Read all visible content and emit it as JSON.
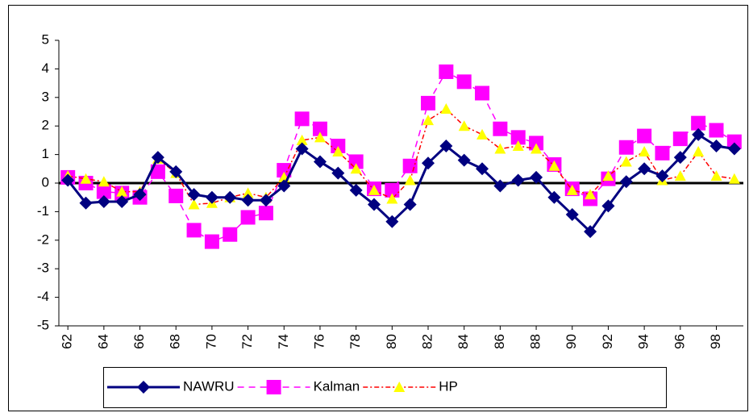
{
  "chart_data": {
    "type": "line",
    "x": [
      62,
      63,
      64,
      65,
      66,
      67,
      68,
      69,
      70,
      71,
      72,
      73,
      74,
      75,
      76,
      77,
      78,
      79,
      80,
      81,
      82,
      83,
      84,
      85,
      86,
      87,
      88,
      89,
      90,
      91,
      92,
      93,
      94,
      95,
      96,
      97,
      98,
      99
    ],
    "xlim": [
      61.5,
      99.5
    ],
    "xticks": [
      62,
      64,
      66,
      68,
      70,
      72,
      74,
      76,
      78,
      80,
      82,
      84,
      86,
      88,
      90,
      92,
      94,
      96,
      98
    ],
    "ylim": [
      -5,
      5
    ],
    "yticks": [
      -5,
      -4,
      -3,
      -2,
      -1,
      0,
      1,
      2,
      3,
      4,
      5
    ],
    "legend": "bottom",
    "series": [
      {
        "name": "NAWRU",
        "color": "#000080",
        "marker_color": "#000080",
        "marker": "diamond",
        "line_style": "solid",
        "values": [
          0.1,
          -0.7,
          -0.65,
          -0.65,
          -0.4,
          0.9,
          0.4,
          -0.4,
          -0.5,
          -0.5,
          -0.6,
          -0.6,
          -0.1,
          1.2,
          0.75,
          0.35,
          -0.25,
          -0.75,
          -1.35,
          -0.75,
          0.7,
          1.3,
          0.8,
          0.5,
          -0.1,
          0.1,
          0.2,
          -0.5,
          -1.1,
          -1.7,
          -0.8,
          0.05,
          0.5,
          0.25,
          0.9,
          1.7,
          1.3,
          1.2
        ]
      },
      {
        "name": "Kalman",
        "color": "#ff00ff",
        "marker_color": "#ff00ff",
        "marker": "square",
        "line_style": "dash",
        "values": [
          0.2,
          0,
          -0.3,
          -0.35,
          -0.5,
          0.4,
          -0.45,
          -1.65,
          -2.05,
          -1.8,
          -1.2,
          -1.05,
          0.45,
          2.25,
          1.9,
          1.3,
          0.75,
          -0.2,
          -0.25,
          0.6,
          2.8,
          3.9,
          3.55,
          3.15,
          1.9,
          1.6,
          1.4,
          0.65,
          -0.2,
          -0.55,
          0.15,
          1.25,
          1.65,
          1.05,
          1.55,
          2.1,
          1.85,
          1.45
        ]
      },
      {
        "name": "HP",
        "color": "#ff0000",
        "marker_color": "#ffff00",
        "marker": "triangle",
        "line_style": "dashdot",
        "values": [
          0.25,
          0.15,
          0.05,
          -0.3,
          -0.3,
          0.85,
          0.35,
          -0.75,
          -0.7,
          -0.5,
          -0.35,
          -0.5,
          0.2,
          1.5,
          1.6,
          1.1,
          0.5,
          -0.25,
          -0.55,
          0.1,
          2.2,
          2.6,
          2.0,
          1.7,
          1.2,
          1.3,
          1.2,
          0.6,
          -0.25,
          -0.4,
          0.25,
          0.75,
          1.1,
          0.1,
          0.25,
          1.1,
          0.25,
          0.15
        ]
      }
    ]
  }
}
